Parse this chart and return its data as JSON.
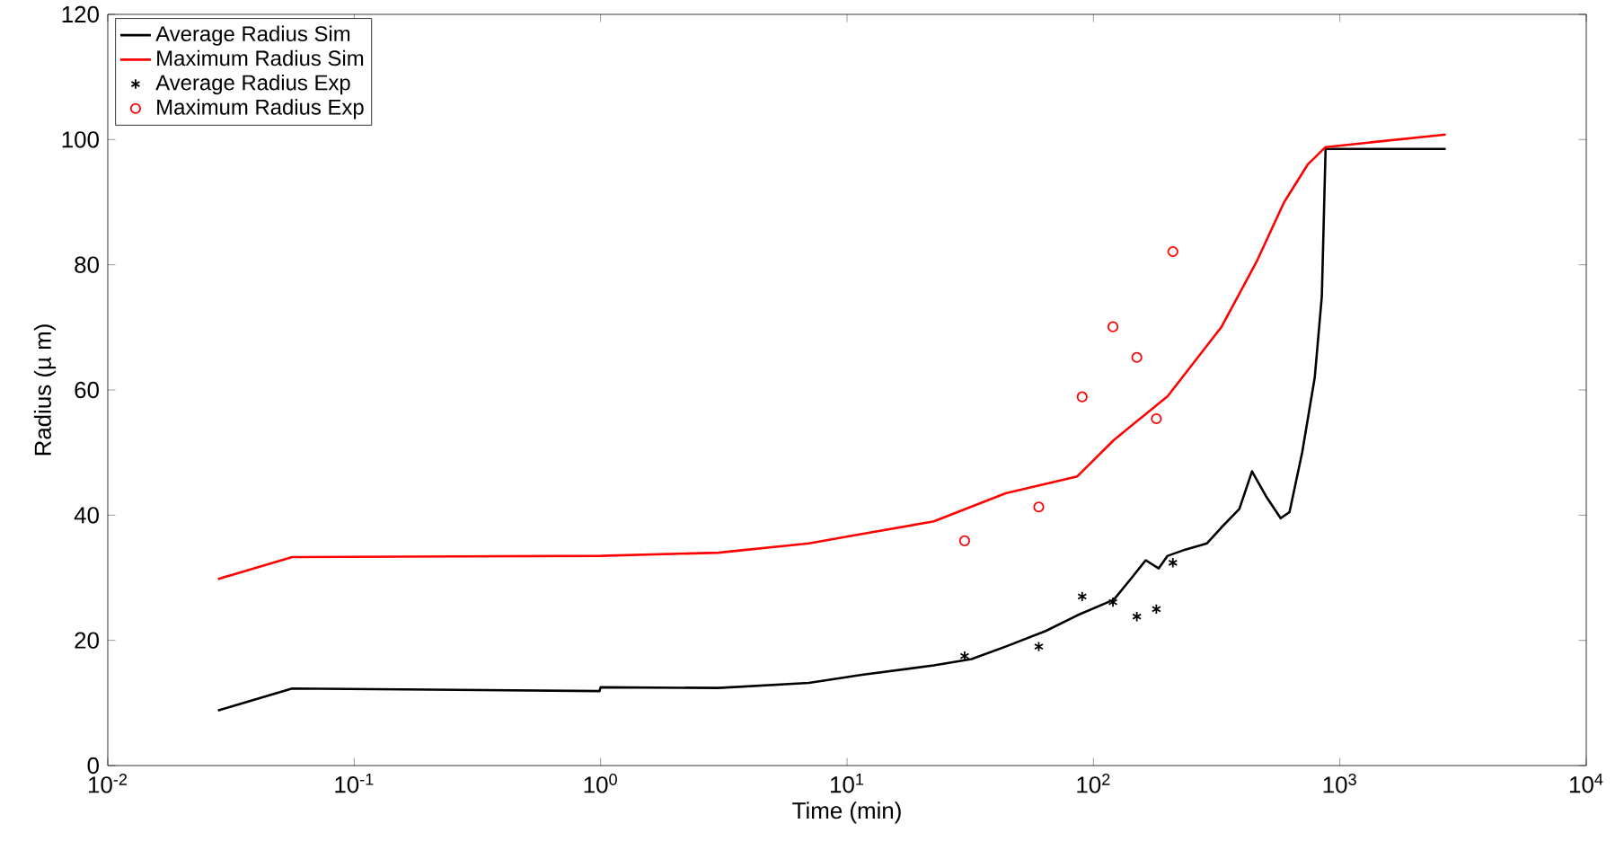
{
  "chart_data": {
    "type": "line",
    "xlabel": "Time (min)",
    "ylabel": "Radius (µ m)",
    "log": "x",
    "xlim": [
      0.01,
      10000
    ],
    "ylim": [
      0,
      120
    ],
    "xticks": [
      {
        "value": 0.01,
        "label": "10$^{-2}$"
      },
      {
        "value": 0.1,
        "label": "10$^{-1}$"
      },
      {
        "value": 1,
        "label": "10$^{0}$"
      },
      {
        "value": 10,
        "label": "10$^{1}$"
      },
      {
        "value": 100,
        "label": "10$^{2}$"
      },
      {
        "value": 1000,
        "label": "10$^{3}$"
      },
      {
        "value": 10000,
        "label": "10$^{4}$"
      }
    ],
    "yticks": [
      0,
      20,
      40,
      60,
      80,
      100,
      120
    ],
    "grid": false,
    "legend": "top left",
    "series": [
      {
        "name": "Average Radius Sim",
        "color": "#000000",
        "marker": "none",
        "x": [
          0.028,
          0.056,
          0.99,
          1.0,
          3.0,
          7.0,
          11.5,
          22.5,
          32,
          44,
          64,
          86,
          121,
          143,
          163,
          184,
          200,
          236,
          289,
          330,
          391,
          440,
          502,
          575,
          625,
          703,
          791,
          845,
          875,
          2690
        ],
        "values": [
          8.8,
          12.3,
          11.9,
          12.5,
          12.4,
          13.2,
          14.5,
          16.0,
          17.0,
          19.0,
          21.5,
          24.0,
          26.5,
          30.0,
          32.8,
          31.5,
          33.5,
          34.5,
          35.5,
          38.0,
          41.0,
          47.0,
          43.0,
          39.5,
          40.5,
          50.0,
          62.0,
          75.0,
          98.5,
          98.5
        ]
      },
      {
        "name": "Maximum Radius Sim",
        "color": "#ff0000",
        "marker": "none",
        "x": [
          0.028,
          0.056,
          1.0,
          3.0,
          7.0,
          11.5,
          22.5,
          44,
          86,
          121,
          200,
          330,
          462,
          594,
          740,
          875,
          2690
        ],
        "values": [
          29.8,
          33.3,
          33.5,
          34.0,
          35.5,
          37.0,
          39.0,
          43.5,
          46.2,
          52.0,
          59.0,
          70.0,
          80.7,
          90.0,
          96.0,
          98.8,
          100.8
        ]
      },
      {
        "name": "Average Radius Exp",
        "type": "scatter",
        "color": "#000000",
        "marker": "cross",
        "x": [
          30,
          60,
          90,
          120,
          150,
          180,
          210
        ],
        "values": [
          17.5,
          19.0,
          27.0,
          26.1,
          23.8,
          25.0,
          32.4
        ]
      },
      {
        "name": "Maximum Radius Exp",
        "type": "scatter",
        "color": "#ff0000",
        "marker": "circle",
        "x": [
          30,
          60,
          90,
          120,
          150,
          180,
          210
        ],
        "values": [
          35.9,
          41.3,
          58.9,
          70.1,
          65.2,
          55.4,
          82.1
        ]
      }
    ]
  }
}
